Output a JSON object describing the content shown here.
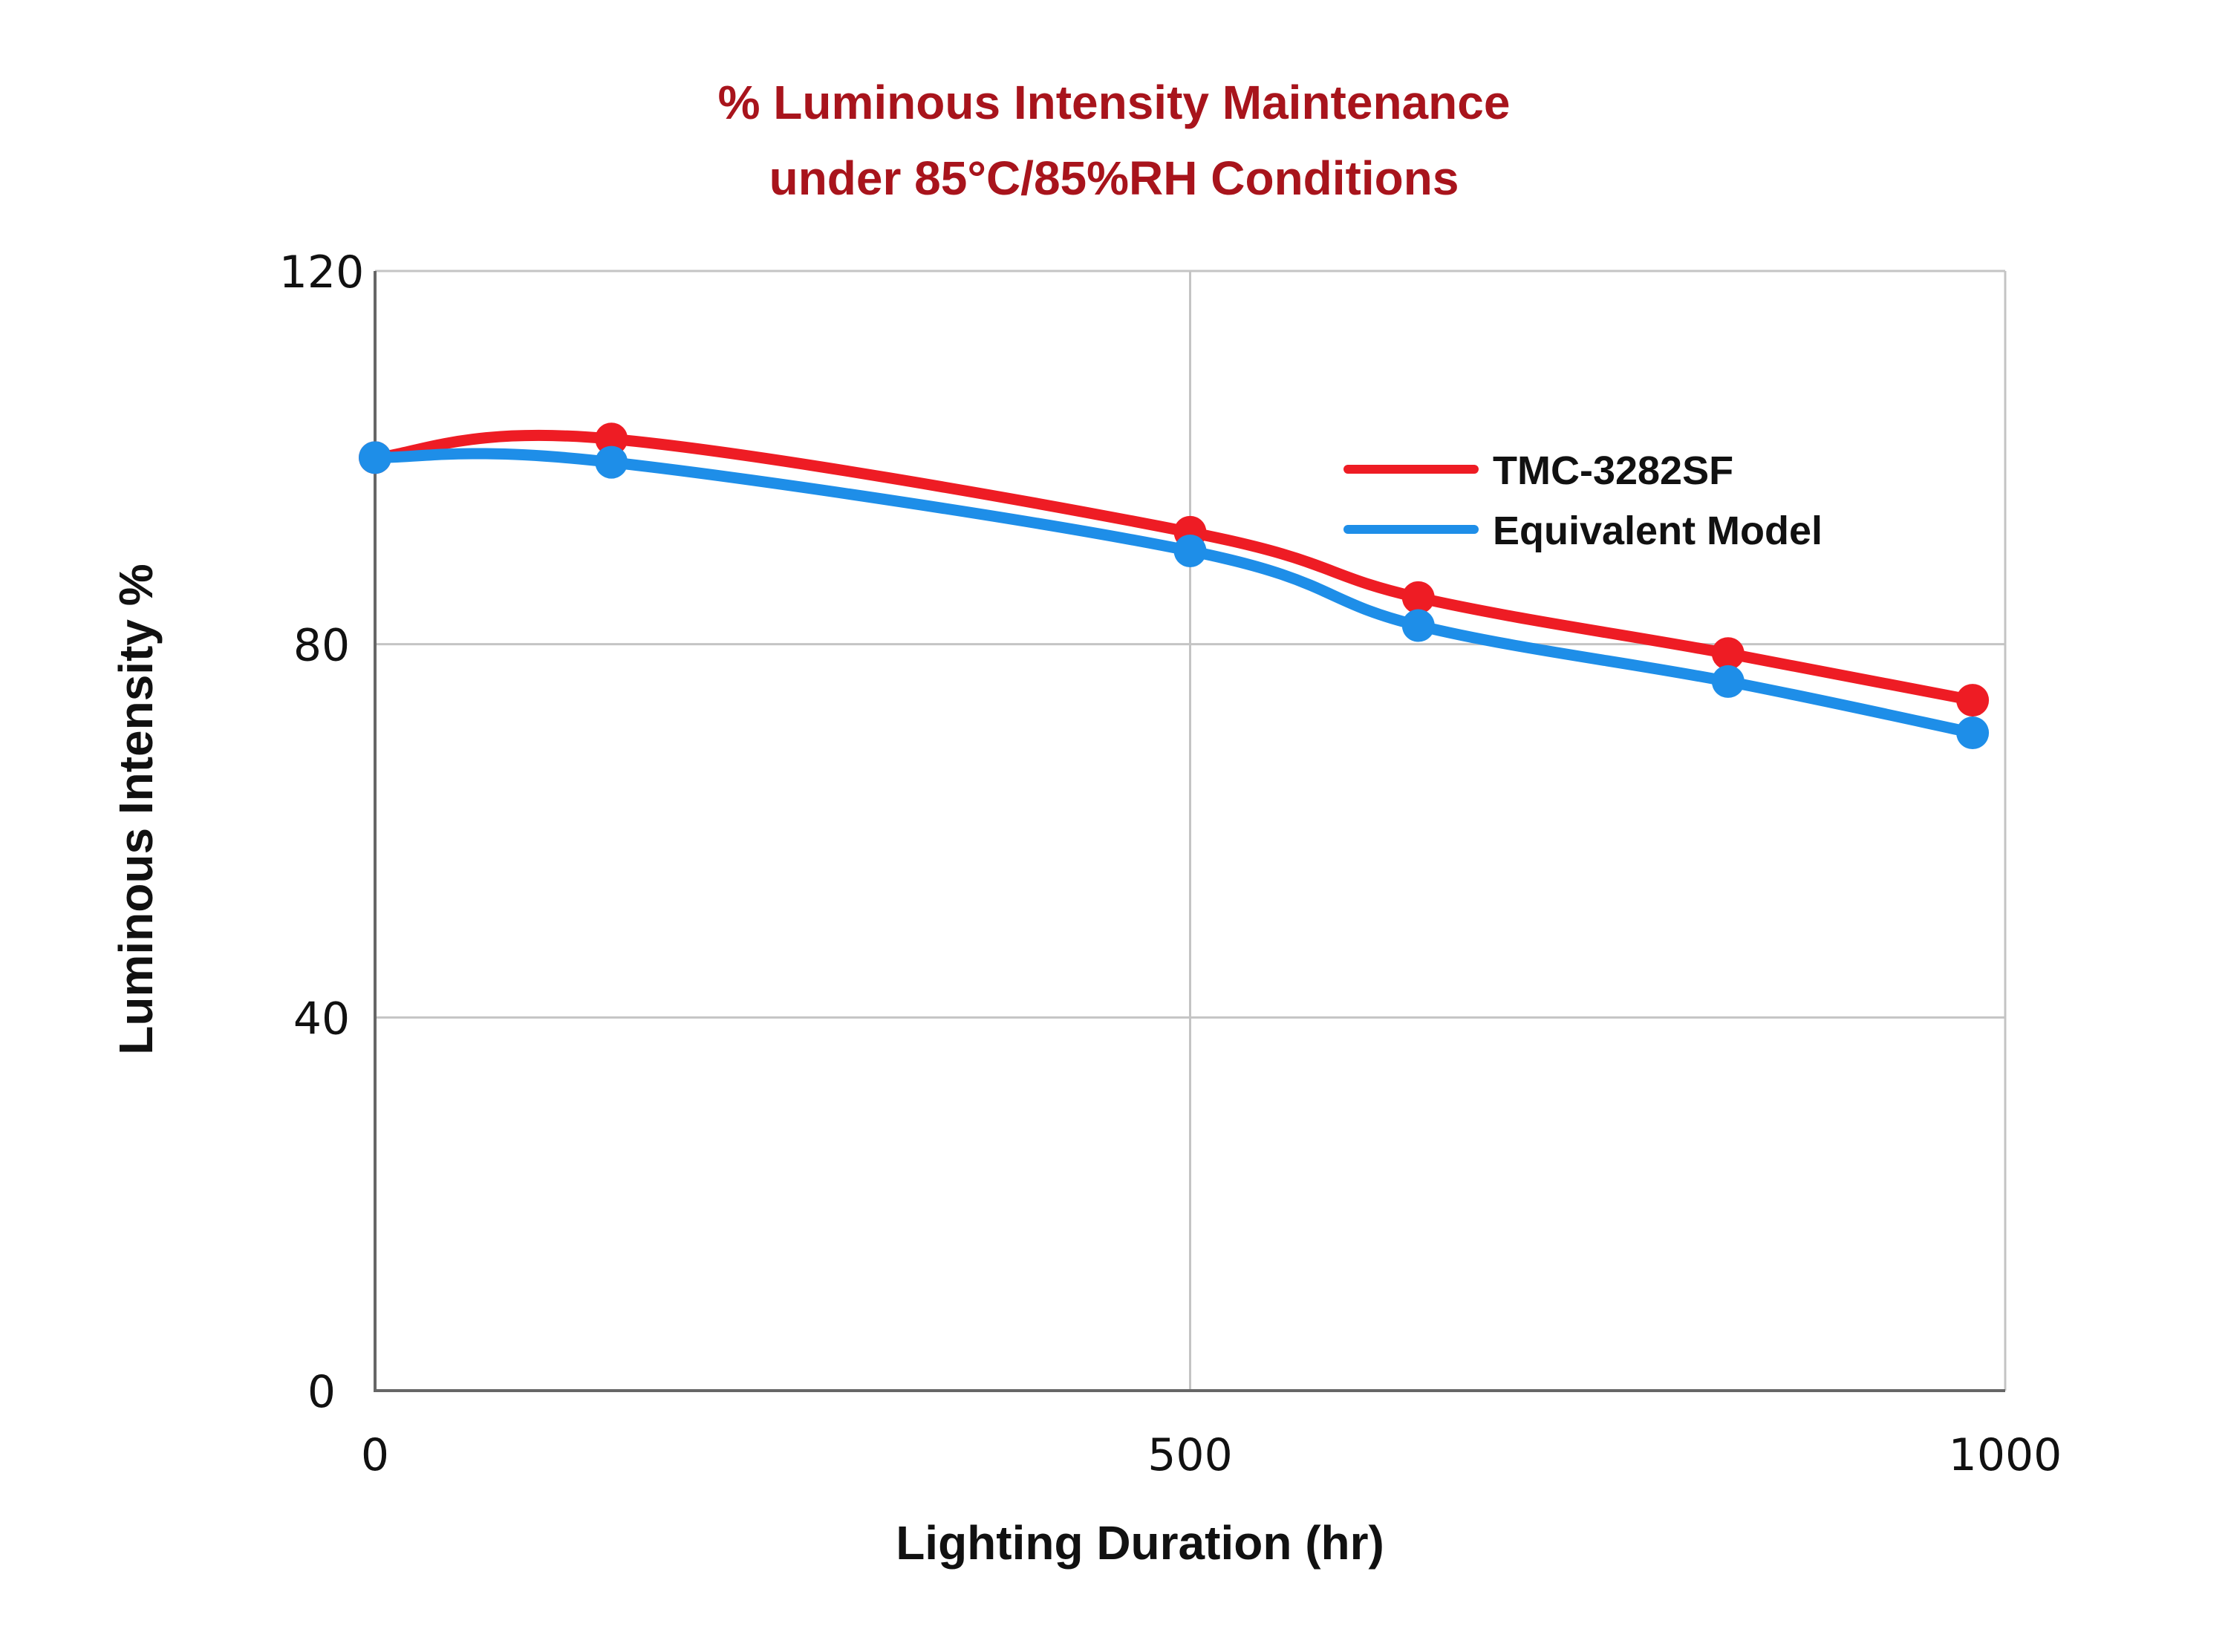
{
  "chart_data": {
    "type": "line",
    "title": [
      "% Luminous Intensity Maintenance",
      "under 85°C/85%RH Conditions"
    ],
    "xlabel": "Lighting Duration (hr)",
    "ylabel": "Luminous Intensity %",
    "xlim": [
      0,
      1000
    ],
    "ylim": [
      0,
      120
    ],
    "xticks": [
      0,
      500,
      1000
    ],
    "xtick_labels": [
      "0",
      "500",
      "1000"
    ],
    "yticks": [
      0,
      40,
      80,
      120
    ],
    "ytick_labels": [
      "0",
      "40",
      "80",
      "120"
    ],
    "grid": true,
    "legend_position": "top-right",
    "series": [
      {
        "name": "TMC-3282SF",
        "color": "#ee1c24",
        "x": [
          0,
          145,
          500,
          640,
          830,
          980
        ],
        "y": [
          100,
          102,
          92,
          85,
          79,
          74
        ]
      },
      {
        "name": "Equivalent Model",
        "color": "#1e8ee8",
        "x": [
          0,
          145,
          500,
          640,
          830,
          980
        ],
        "y": [
          100,
          99.5,
          90,
          82,
          76,
          70.5
        ]
      }
    ]
  }
}
